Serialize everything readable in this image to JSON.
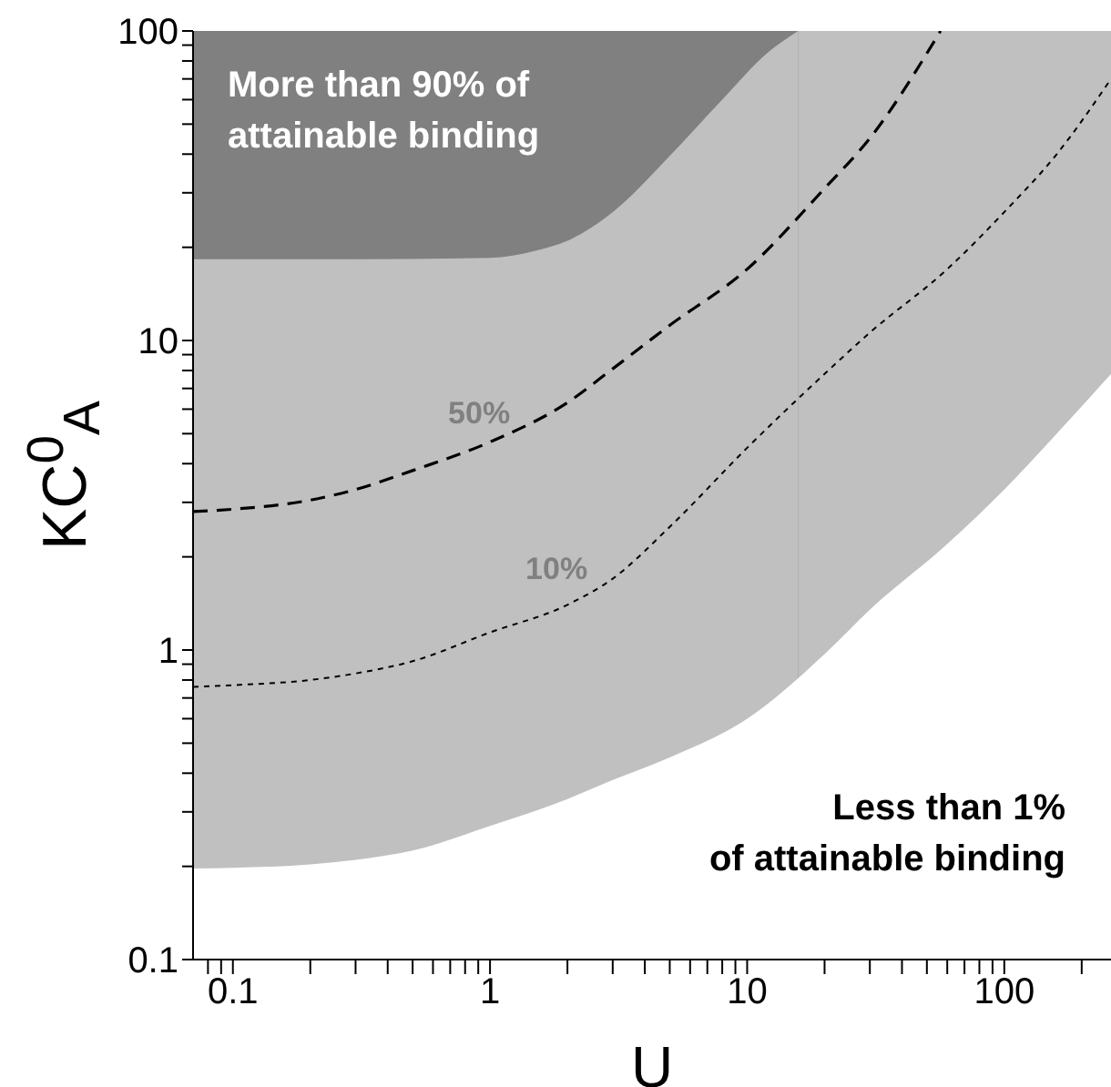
{
  "chart_data": {
    "type": "line",
    "xlabel": "U",
    "ylabel": "KC$^{0}$$_{A}$",
    "log": "xy",
    "xlim": [
      0.07,
      260
    ],
    "ylim": [
      0.1,
      100
    ],
    "xticks": [
      {
        "value": 0.08,
        "label": null
      },
      {
        "value": 0.09,
        "label": null
      },
      0.1,
      {
        "value": 0.2,
        "label": null
      },
      {
        "value": 0.3,
        "label": null
      },
      {
        "value": 0.4,
        "label": null
      },
      {
        "value": 0.5,
        "label": null
      },
      {
        "value": 0.6,
        "label": null
      },
      {
        "value": 0.7,
        "label": null
      },
      {
        "value": 0.8,
        "label": null
      },
      {
        "value": 0.9,
        "label": null
      },
      1,
      {
        "value": 2,
        "label": null
      },
      {
        "value": 3,
        "label": null
      },
      {
        "value": 4,
        "label": null
      },
      {
        "value": 5,
        "label": null
      },
      {
        "value": 6,
        "label": null
      },
      {
        "value": 7,
        "label": null
      },
      {
        "value": 8,
        "label": null
      },
      {
        "value": 9,
        "label": null
      },
      10,
      {
        "value": 20,
        "label": null
      },
      {
        "value": 30,
        "label": null
      },
      {
        "value": 40,
        "label": null
      },
      {
        "value": 50,
        "label": null
      },
      {
        "value": 60,
        "label": null
      },
      {
        "value": 70,
        "label": null
      },
      {
        "value": 80,
        "label": null
      },
      {
        "value": 90,
        "label": null
      },
      100,
      {
        "value": 200,
        "label": null
      }
    ],
    "yticks": [
      0.1,
      {
        "value": 0.2,
        "label": null
      },
      {
        "value": 0.3,
        "label": null
      },
      {
        "value": 0.4,
        "label": null
      },
      {
        "value": 0.5,
        "label": null
      },
      {
        "value": 0.6,
        "label": null
      },
      {
        "value": 0.7,
        "label": null
      },
      {
        "value": 0.8,
        "label": null
      },
      {
        "value": 0.9,
        "label": null
      },
      1,
      {
        "value": 2,
        "label": null
      },
      {
        "value": 3,
        "label": null
      },
      {
        "value": 4,
        "label": null
      },
      {
        "value": 5,
        "label": null
      },
      {
        "value": 6,
        "label": null
      },
      {
        "value": 7,
        "label": null
      },
      {
        "value": 8,
        "label": null
      },
      {
        "value": 9,
        "label": null
      },
      10,
      {
        "value": 20,
        "label": null
      },
      {
        "value": 30,
        "label": null
      },
      {
        "value": 40,
        "label": null
      },
      {
        "value": 50,
        "label": null
      },
      {
        "value": 60,
        "label": null
      },
      {
        "value": 70,
        "label": null
      },
      {
        "value": 80,
        "label": null
      },
      {
        "value": 90,
        "label": null
      },
      100
    ],
    "series": [
      {
        "type": "area",
        "color": "#c0c0c0",
        "x": [
          0.07,
          0.1,
          0.3,
          1,
          1.5,
          2,
          3,
          5,
          8,
          12,
          15.8
        ],
        "values": [
          18.3,
          18.3,
          18.3,
          18.5,
          19.5,
          21,
          26,
          39.5,
          60,
          85,
          100
        ]
      },
      {
        "type": "area",
        "color": "#ffffff",
        "x": [
          0.07,
          0.1,
          0.2,
          0.3,
          0.5,
          1,
          2,
          3,
          5,
          10,
          20,
          30,
          60,
          100,
          160,
          260
        ],
        "values": [
          0.197,
          0.198,
          0.203,
          0.21,
          0.225,
          0.27,
          0.33,
          0.38,
          0.45,
          0.6,
          0.97,
          1.35,
          2.2,
          3.3,
          5,
          7.8
        ]
      },
      {
        "name": "50%",
        "color": "#000000",
        "line_style": "dashed",
        "x": [
          0.07,
          0.1,
          0.2,
          0.3,
          0.5,
          1,
          2,
          3,
          5,
          10,
          20,
          30,
          56.5
        ],
        "values": [
          2.8,
          2.85,
          3.05,
          3.3,
          3.8,
          4.7,
          6.3,
          8.1,
          11.2,
          17,
          31,
          45,
          100
        ]
      },
      {
        "name": "10%",
        "color": "#000000",
        "line_style": "dotted",
        "x": [
          0.07,
          0.1,
          0.2,
          0.3,
          0.5,
          1,
          2,
          3,
          5,
          10,
          20,
          30,
          60,
          100,
          160,
          260
        ],
        "values": [
          0.76,
          0.77,
          0.8,
          0.84,
          0.92,
          1.14,
          1.4,
          1.7,
          2.5,
          4.5,
          7.8,
          10.6,
          17,
          26,
          40,
          70
        ]
      }
    ],
    "bands": [
      {
        "axis": "y",
        "from": 0.1,
        "to": 100,
        "color": "#808080"
      },
      {
        "axis": "x",
        "from": 15.8,
        "to": 260,
        "color": "#c0c0c0"
      }
    ],
    "annotations": [
      "More than 90% of\nattainable binding",
      "Less than 1%\nof attainable binding"
    ]
  }
}
